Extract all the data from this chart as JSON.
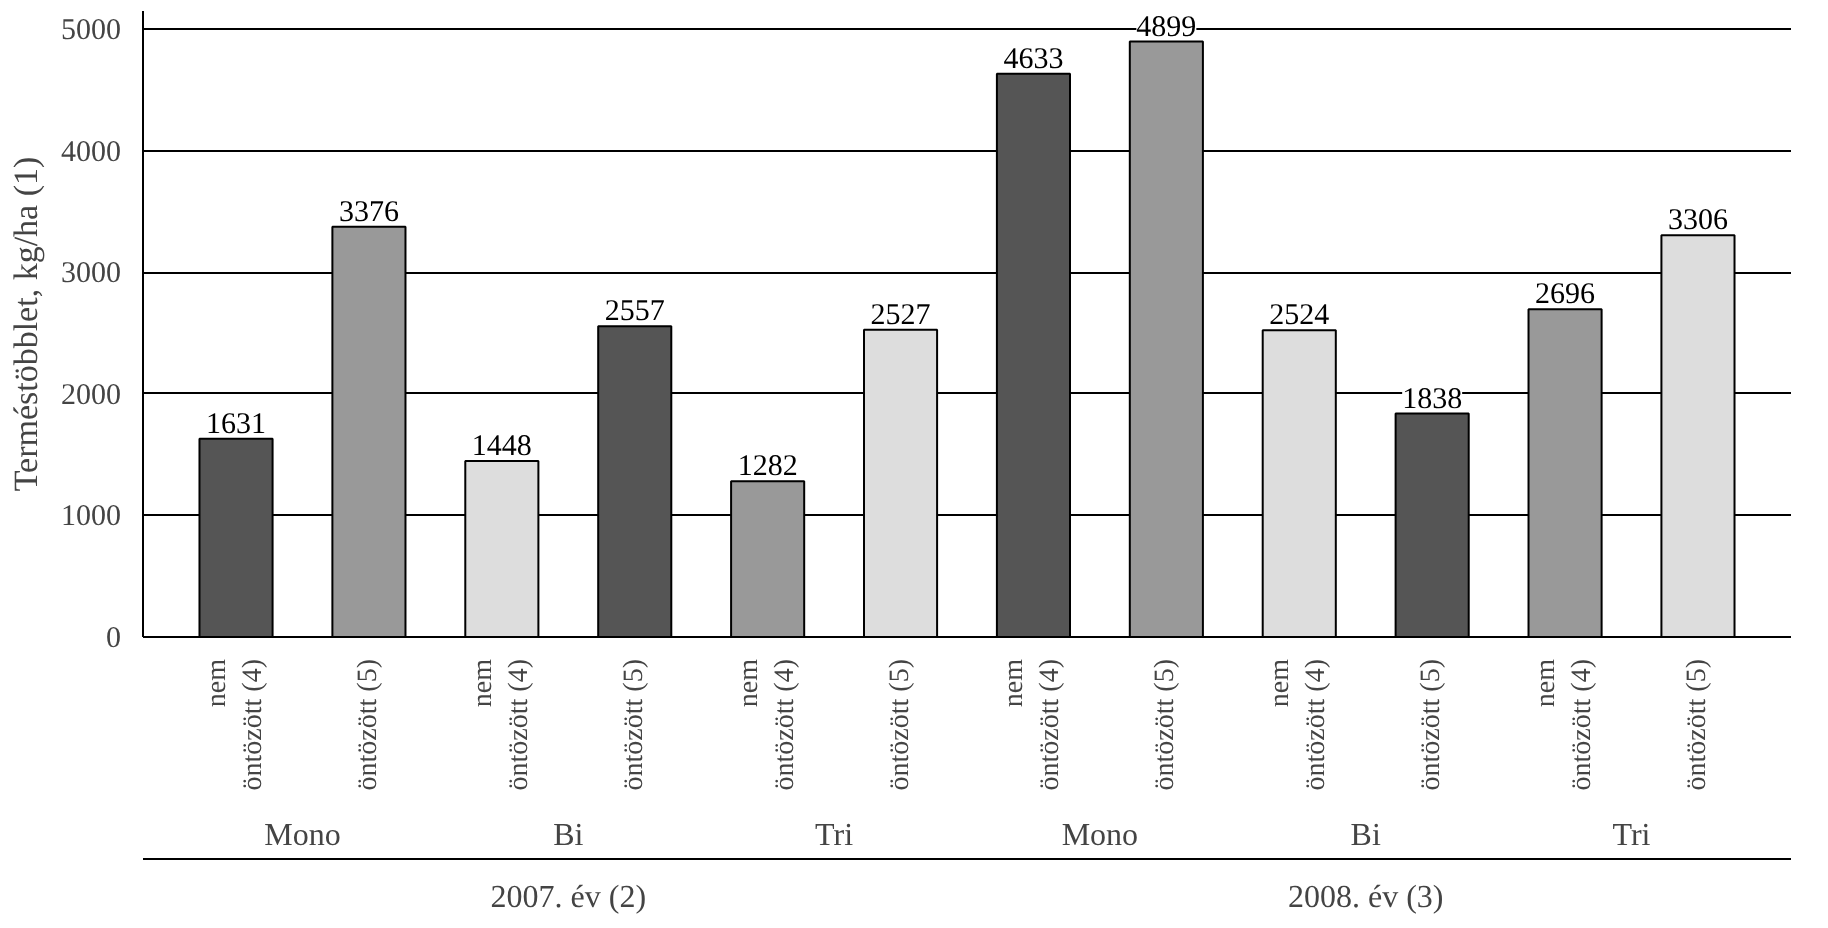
{
  "chart_data": {
    "type": "bar",
    "ylabel": "Terméstöbblet, kg/ha (1)",
    "categories": [
      "nem öntözött (4)",
      "öntözött (5)",
      "nem öntözött (4)",
      "öntözött (5)",
      "nem öntözött (4)",
      "öntözött (5)",
      "nem öntözött (4)",
      "öntözött (5)",
      "nem öntözött (4)",
      "öntözött (5)",
      "nem öntözött (4)",
      "öntözött (5)"
    ],
    "values": [
      1631,
      3376,
      1448,
      2557,
      1282,
      2527,
      4633,
      4899,
      2524,
      1838,
      2696,
      3306
    ],
    "colors": [
      "#555555",
      "#999999",
      "#dddddd",
      "#555555",
      "#999999",
      "#dddddd",
      "#555555",
      "#999999",
      "#dddddd",
      "#555555",
      "#999999",
      "#dddddd"
    ],
    "annotations": [
      "Mono",
      "Bi",
      "Tri",
      "Mono",
      "Bi",
      "Tri",
      "2007. év (2)",
      "2008. év (3)"
    ],
    "ylim": [
      0,
      5150
    ],
    "yticks": [
      0,
      1000,
      2000,
      3000,
      4000,
      5000
    ],
    "grid": "y",
    "data_labels": true
  }
}
